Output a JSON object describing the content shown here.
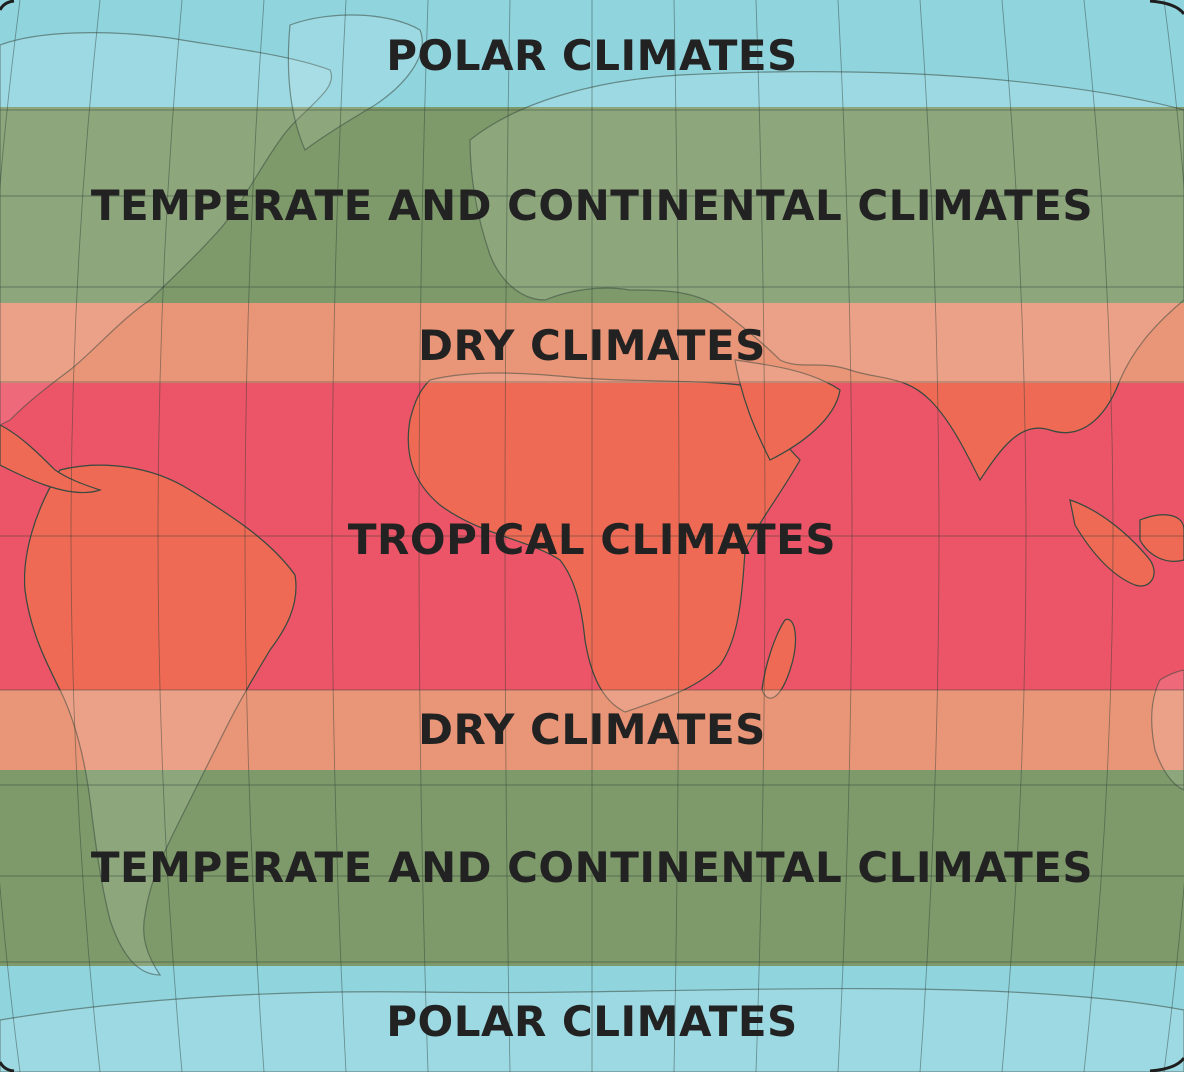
{
  "map": {
    "bands": [
      {
        "id": "polar-north",
        "label": "POLAR CLIMATES",
        "color": "#90d4de"
      },
      {
        "id": "temperate-north",
        "label": "TEMPERATE AND CONTINENTAL CLIMATES",
        "color": "#7e9a6a"
      },
      {
        "id": "dry-north",
        "label": "DRY CLIMATES",
        "color": "#e99577"
      },
      {
        "id": "tropical",
        "label": "TROPICAL CLIMATES",
        "color": "#ec5567"
      },
      {
        "id": "dry-south",
        "label": "DRY CLIMATES",
        "color": "#e99577"
      },
      {
        "id": "temperate-south",
        "label": "TEMPERATE AND CONTINENTAL CLIMATES",
        "color": "#7e9a6a"
      },
      {
        "id": "polar-south",
        "label": "POLAR CLIMATES",
        "color": "#90d4de"
      }
    ],
    "colors": {
      "land_tropical": "#ef6a55",
      "land_overlay": "#ffffff",
      "graticule": "#2d3a33",
      "coastline": "#3a4a40",
      "label_text": "#222222"
    }
  }
}
